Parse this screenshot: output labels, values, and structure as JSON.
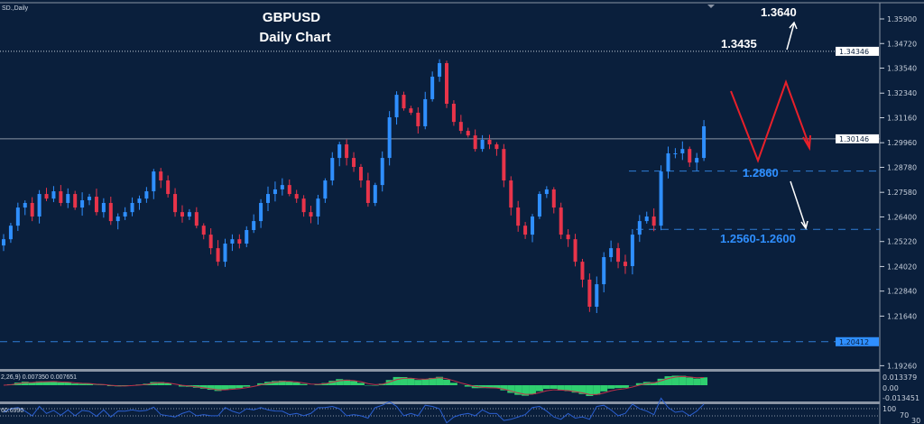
{
  "window": {
    "symbol_label": "SD.,Daily"
  },
  "chart_data": {
    "type": "candlestick",
    "title": "GBPUSD",
    "subtitle": "Daily Chart",
    "colors": {
      "background": "#0a1f3c",
      "bull": "#2f8fff",
      "bear": "#e8344a",
      "levels": "#2f7fd6",
      "forecast": "#e8202a",
      "arrows": "#ffffff"
    },
    "ylim": [
      1.186,
      1.364
    ],
    "y_ticks": [
      "1.35900",
      "1.34720",
      "1.33540",
      "1.32340",
      "1.31160",
      "1.29960",
      "1.28780",
      "1.27580",
      "1.26400",
      "1.25220",
      "1.24020",
      "1.22840",
      "1.21640",
      "1.19260"
    ],
    "price_tags": [
      {
        "value": "1.34346",
        "style": "white"
      },
      {
        "value": "1.30146",
        "style": "white"
      },
      {
        "value": "1.20412",
        "style": "blue"
      }
    ],
    "closes": [
      1.2533,
      1.2598,
      1.2685,
      1.2707,
      1.2642,
      1.275,
      1.2728,
      1.2763,
      1.2707,
      1.275,
      1.2685,
      1.272,
      1.2737,
      1.2663,
      1.2707,
      1.262,
      1.2642,
      1.2663,
      1.2707,
      1.2728,
      1.2763,
      1.2858,
      1.2815,
      1.275,
      1.2663,
      1.2642,
      1.2663,
      1.2598,
      1.2555,
      1.249,
      1.2425,
      1.2512,
      1.2533,
      1.2512,
      1.2577,
      1.262,
      1.2707,
      1.275,
      1.2772,
      1.2793,
      1.275,
      1.2728,
      1.2663,
      1.2642,
      1.2728,
      1.2815,
      1.2923,
      1.2988,
      1.2923,
      1.288,
      1.2815,
      1.2707,
      1.2793,
      1.2923,
      1.3118,
      1.3226,
      1.3161,
      1.314,
      1.3075,
      1.3205,
      1.3313,
      1.3378,
      1.3183,
      1.3096,
      1.3053,
      1.3031,
      1.2966,
      1.301,
      1.2988,
      1.2966,
      1.2815,
      1.2685,
      1.2598,
      1.2555,
      1.2642,
      1.275,
      1.2772,
      1.2685,
      1.2555,
      1.2533,
      1.2425,
      1.2339,
      1.2209,
      1.2317,
      1.2447,
      1.249,
      1.2425,
      1.2404,
      1.2555,
      1.262,
      1.2642,
      1.2598,
      1.2858,
      1.2945,
      1.2945,
      1.2966,
      1.2901,
      1.2923,
      1.3075
    ],
    "levels": [
      {
        "price": 1.34346,
        "style": "dotted"
      },
      {
        "price": 1.30146,
        "style": "solid"
      },
      {
        "price": 1.286,
        "style": "dashed"
      },
      {
        "price": 1.258,
        "style": "dashed"
      },
      {
        "price": 1.20412,
        "style": "dashed"
      }
    ],
    "annotations": {
      "target_high": "1.3640",
      "resistance": "1.3435",
      "support": "1.2860",
      "support_zone": "1.2560-1.2600"
    },
    "macd": {
      "label": "2,26,9) 0.007350 0.007651",
      "ticks": [
        "0.013379",
        "0.00",
        "-0.013451"
      ]
    },
    "rsi": {
      "label": "60.6990",
      "ticks": [
        "100",
        "70",
        "30"
      ]
    }
  }
}
